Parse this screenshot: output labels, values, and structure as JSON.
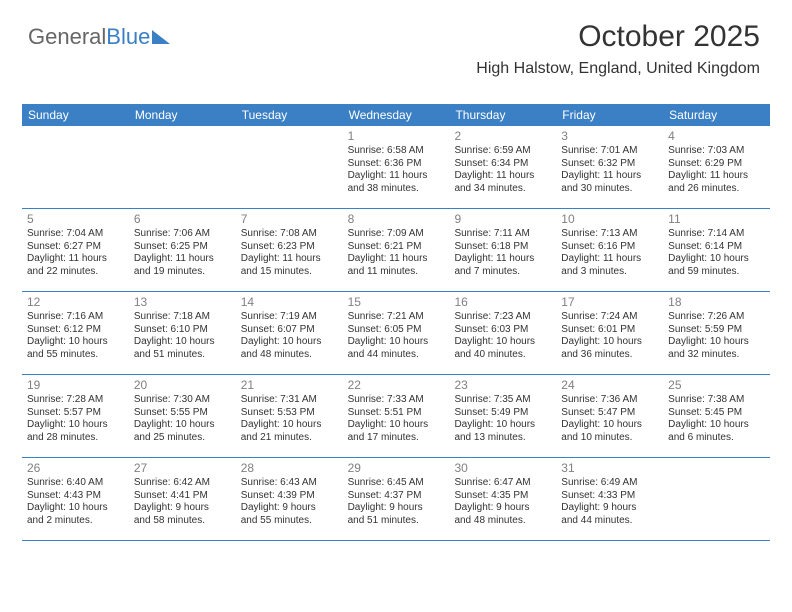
{
  "logo": {
    "part1": "General",
    "part2": "Blue"
  },
  "title": "October 2025",
  "location": "High Halstow, England, United Kingdom",
  "colors": {
    "header_bg": "#3b7fc4",
    "header_text": "#ffffff",
    "body_bg": "#ffffff",
    "day_num": "#808080",
    "text": "#333333",
    "rule": "#3b7fc4"
  },
  "day_headers": [
    "Sunday",
    "Monday",
    "Tuesday",
    "Wednesday",
    "Thursday",
    "Friday",
    "Saturday"
  ],
  "weeks": [
    [
      {
        "num": "",
        "sr": "",
        "ss": "",
        "dl1": "",
        "dl2": ""
      },
      {
        "num": "",
        "sr": "",
        "ss": "",
        "dl1": "",
        "dl2": ""
      },
      {
        "num": "",
        "sr": "",
        "ss": "",
        "dl1": "",
        "dl2": ""
      },
      {
        "num": "1",
        "sr": "Sunrise: 6:58 AM",
        "ss": "Sunset: 6:36 PM",
        "dl1": "Daylight: 11 hours",
        "dl2": "and 38 minutes."
      },
      {
        "num": "2",
        "sr": "Sunrise: 6:59 AM",
        "ss": "Sunset: 6:34 PM",
        "dl1": "Daylight: 11 hours",
        "dl2": "and 34 minutes."
      },
      {
        "num": "3",
        "sr": "Sunrise: 7:01 AM",
        "ss": "Sunset: 6:32 PM",
        "dl1": "Daylight: 11 hours",
        "dl2": "and 30 minutes."
      },
      {
        "num": "4",
        "sr": "Sunrise: 7:03 AM",
        "ss": "Sunset: 6:29 PM",
        "dl1": "Daylight: 11 hours",
        "dl2": "and 26 minutes."
      }
    ],
    [
      {
        "num": "5",
        "sr": "Sunrise: 7:04 AM",
        "ss": "Sunset: 6:27 PM",
        "dl1": "Daylight: 11 hours",
        "dl2": "and 22 minutes."
      },
      {
        "num": "6",
        "sr": "Sunrise: 7:06 AM",
        "ss": "Sunset: 6:25 PM",
        "dl1": "Daylight: 11 hours",
        "dl2": "and 19 minutes."
      },
      {
        "num": "7",
        "sr": "Sunrise: 7:08 AM",
        "ss": "Sunset: 6:23 PM",
        "dl1": "Daylight: 11 hours",
        "dl2": "and 15 minutes."
      },
      {
        "num": "8",
        "sr": "Sunrise: 7:09 AM",
        "ss": "Sunset: 6:21 PM",
        "dl1": "Daylight: 11 hours",
        "dl2": "and 11 minutes."
      },
      {
        "num": "9",
        "sr": "Sunrise: 7:11 AM",
        "ss": "Sunset: 6:18 PM",
        "dl1": "Daylight: 11 hours",
        "dl2": "and 7 minutes."
      },
      {
        "num": "10",
        "sr": "Sunrise: 7:13 AM",
        "ss": "Sunset: 6:16 PM",
        "dl1": "Daylight: 11 hours",
        "dl2": "and 3 minutes."
      },
      {
        "num": "11",
        "sr": "Sunrise: 7:14 AM",
        "ss": "Sunset: 6:14 PM",
        "dl1": "Daylight: 10 hours",
        "dl2": "and 59 minutes."
      }
    ],
    [
      {
        "num": "12",
        "sr": "Sunrise: 7:16 AM",
        "ss": "Sunset: 6:12 PM",
        "dl1": "Daylight: 10 hours",
        "dl2": "and 55 minutes."
      },
      {
        "num": "13",
        "sr": "Sunrise: 7:18 AM",
        "ss": "Sunset: 6:10 PM",
        "dl1": "Daylight: 10 hours",
        "dl2": "and 51 minutes."
      },
      {
        "num": "14",
        "sr": "Sunrise: 7:19 AM",
        "ss": "Sunset: 6:07 PM",
        "dl1": "Daylight: 10 hours",
        "dl2": "and 48 minutes."
      },
      {
        "num": "15",
        "sr": "Sunrise: 7:21 AM",
        "ss": "Sunset: 6:05 PM",
        "dl1": "Daylight: 10 hours",
        "dl2": "and 44 minutes."
      },
      {
        "num": "16",
        "sr": "Sunrise: 7:23 AM",
        "ss": "Sunset: 6:03 PM",
        "dl1": "Daylight: 10 hours",
        "dl2": "and 40 minutes."
      },
      {
        "num": "17",
        "sr": "Sunrise: 7:24 AM",
        "ss": "Sunset: 6:01 PM",
        "dl1": "Daylight: 10 hours",
        "dl2": "and 36 minutes."
      },
      {
        "num": "18",
        "sr": "Sunrise: 7:26 AM",
        "ss": "Sunset: 5:59 PM",
        "dl1": "Daylight: 10 hours",
        "dl2": "and 32 minutes."
      }
    ],
    [
      {
        "num": "19",
        "sr": "Sunrise: 7:28 AM",
        "ss": "Sunset: 5:57 PM",
        "dl1": "Daylight: 10 hours",
        "dl2": "and 28 minutes."
      },
      {
        "num": "20",
        "sr": "Sunrise: 7:30 AM",
        "ss": "Sunset: 5:55 PM",
        "dl1": "Daylight: 10 hours",
        "dl2": "and 25 minutes."
      },
      {
        "num": "21",
        "sr": "Sunrise: 7:31 AM",
        "ss": "Sunset: 5:53 PM",
        "dl1": "Daylight: 10 hours",
        "dl2": "and 21 minutes."
      },
      {
        "num": "22",
        "sr": "Sunrise: 7:33 AM",
        "ss": "Sunset: 5:51 PM",
        "dl1": "Daylight: 10 hours",
        "dl2": "and 17 minutes."
      },
      {
        "num": "23",
        "sr": "Sunrise: 7:35 AM",
        "ss": "Sunset: 5:49 PM",
        "dl1": "Daylight: 10 hours",
        "dl2": "and 13 minutes."
      },
      {
        "num": "24",
        "sr": "Sunrise: 7:36 AM",
        "ss": "Sunset: 5:47 PM",
        "dl1": "Daylight: 10 hours",
        "dl2": "and 10 minutes."
      },
      {
        "num": "25",
        "sr": "Sunrise: 7:38 AM",
        "ss": "Sunset: 5:45 PM",
        "dl1": "Daylight: 10 hours",
        "dl2": "and 6 minutes."
      }
    ],
    [
      {
        "num": "26",
        "sr": "Sunrise: 6:40 AM",
        "ss": "Sunset: 4:43 PM",
        "dl1": "Daylight: 10 hours",
        "dl2": "and 2 minutes."
      },
      {
        "num": "27",
        "sr": "Sunrise: 6:42 AM",
        "ss": "Sunset: 4:41 PM",
        "dl1": "Daylight: 9 hours",
        "dl2": "and 58 minutes."
      },
      {
        "num": "28",
        "sr": "Sunrise: 6:43 AM",
        "ss": "Sunset: 4:39 PM",
        "dl1": "Daylight: 9 hours",
        "dl2": "and 55 minutes."
      },
      {
        "num": "29",
        "sr": "Sunrise: 6:45 AM",
        "ss": "Sunset: 4:37 PM",
        "dl1": "Daylight: 9 hours",
        "dl2": "and 51 minutes."
      },
      {
        "num": "30",
        "sr": "Sunrise: 6:47 AM",
        "ss": "Sunset: 4:35 PM",
        "dl1": "Daylight: 9 hours",
        "dl2": "and 48 minutes."
      },
      {
        "num": "31",
        "sr": "Sunrise: 6:49 AM",
        "ss": "Sunset: 4:33 PM",
        "dl1": "Daylight: 9 hours",
        "dl2": "and 44 minutes."
      },
      {
        "num": "",
        "sr": "",
        "ss": "",
        "dl1": "",
        "dl2": ""
      }
    ]
  ]
}
